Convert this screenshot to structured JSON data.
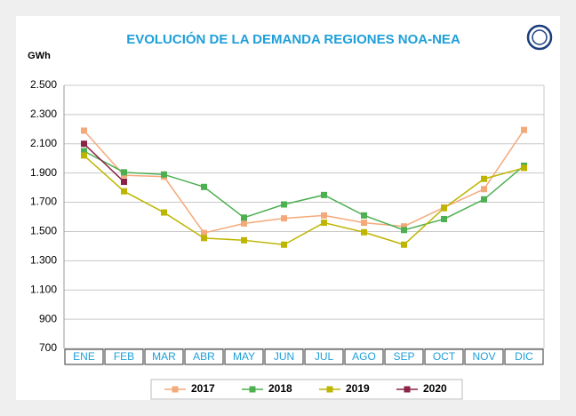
{
  "chart_data": {
    "type": "line",
    "title": "EVOLUCIÓN DE LA DEMANDA REGIONES NOA-NEA",
    "y_label": "GWh",
    "categories": [
      "ENE",
      "FEB",
      "MAR",
      "ABR",
      "MAY",
      "JUN",
      "JUL",
      "AGO",
      "SEP",
      "OCT",
      "NOV",
      "DIC"
    ],
    "series": [
      {
        "name": "2017",
        "color": "#f4a97a",
        "values": [
          2190,
          1885,
          1875,
          1490,
          1555,
          1590,
          1610,
          1560,
          1535,
          1665,
          1790,
          2195
        ]
      },
      {
        "name": "2018",
        "color": "#4caf50",
        "values": [
          2050,
          1905,
          1890,
          1805,
          1595,
          1685,
          1750,
          1610,
          1510,
          1585,
          1720,
          1950
        ]
      },
      {
        "name": "2019",
        "color": "#bdb500",
        "values": [
          2020,
          1775,
          1630,
          1455,
          1440,
          1410,
          1560,
          1495,
          1410,
          1660,
          1860,
          1935
        ]
      },
      {
        "name": "2020",
        "color": "#8b2346",
        "values": [
          2100,
          1840,
          null,
          null,
          null,
          null,
          null,
          null,
          null,
          null,
          null,
          null
        ]
      }
    ],
    "ylim": [
      700,
      2500
    ],
    "yticks": [
      700,
      900,
      {
        "value": 1100,
        "label": "1.100"
      },
      {
        "value": 1300,
        "label": "1.300"
      },
      {
        "value": 1500,
        "label": "1.500"
      },
      {
        "value": 1700,
        "label": "1.700"
      },
      {
        "value": 1900,
        "label": "1.900"
      },
      {
        "value": 2100,
        "label": "2.100"
      },
      {
        "value": 2300,
        "label": "2.300"
      },
      {
        "value": 2500,
        "label": "2.500"
      }
    ],
    "grid": true
  }
}
